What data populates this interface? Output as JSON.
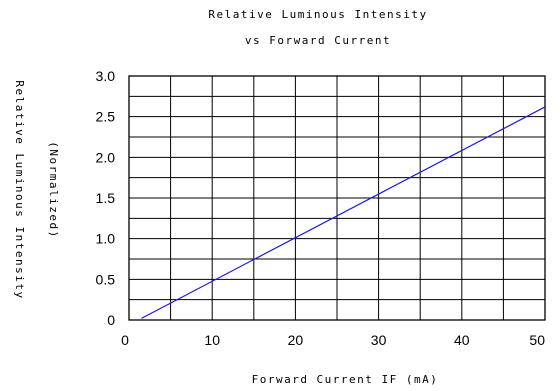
{
  "chart_data": {
    "type": "line",
    "title": "Relative Luminous Intensity",
    "subtitle": "vs Forward Current",
    "xlabel": "Forward Current IF (mA)",
    "ylabel": "Relative Luminous Intensity",
    "ylabel_sub": "(Normalized)",
    "xlim": [
      0,
      50
    ],
    "ylim": [
      0,
      3.0
    ],
    "x_ticks": [
      0,
      10,
      20,
      30,
      40,
      50
    ],
    "x_tick_labels": [
      "0",
      "10",
      "20",
      "30",
      "40",
      "50"
    ],
    "y_ticks": [
      0,
      0.5,
      1.0,
      1.5,
      2.0,
      2.5,
      3.0
    ],
    "y_tick_labels": [
      "0",
      "0.5",
      "1.0",
      "1.5",
      "2.0",
      "2.5",
      "3.0"
    ],
    "grid": true,
    "line_color": "#1a1adf",
    "series": [
      {
        "x": [
          1.5,
          50
        ],
        "y": [
          0.02,
          2.62
        ]
      }
    ]
  }
}
